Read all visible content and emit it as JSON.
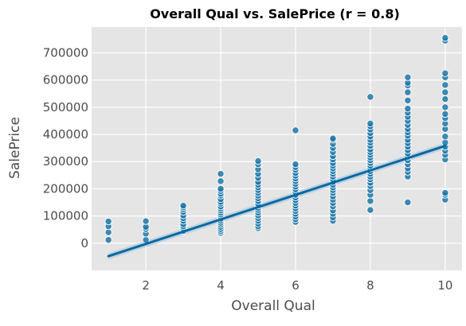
{
  "colors": {
    "background": "#ffffff",
    "plot_background": "#e5e5e5",
    "grid": "#ffffff",
    "point": "#1f77a8",
    "point_edge": "#ffffff",
    "regression_line": "#0868a3",
    "confidence_band": "#9ec3db"
  },
  "chart_data": {
    "type": "scatter",
    "title": "Overall Qual vs. SalePrice (r = 0.8)",
    "xlabel": "Overall Qual",
    "ylabel": "SalePrice",
    "xlim": [
      0.55,
      10.45
    ],
    "ylim": [
      -100000,
      795000
    ],
    "xticks": [
      2,
      4,
      6,
      8,
      10
    ],
    "yticks": [
      0,
      100000,
      200000,
      300000,
      400000,
      500000,
      600000,
      700000
    ],
    "grid": true,
    "legend": "none",
    "regression": {
      "x": [
        1,
        10
      ],
      "y": [
        -48000,
        358000
      ]
    },
    "series": [
      {
        "points": [
          [
            1,
            12000
          ],
          [
            1,
            40000
          ],
          [
            1,
            62000
          ],
          [
            1,
            80000
          ],
          [
            2,
            12000
          ],
          [
            2,
            35000
          ],
          [
            2,
            52000
          ],
          [
            2,
            60000
          ],
          [
            2,
            81000
          ],
          [
            3,
            45000
          ],
          [
            3,
            55000
          ],
          [
            3,
            62000
          ],
          [
            3,
            70000
          ],
          [
            3,
            82000
          ],
          [
            3,
            92000
          ],
          [
            3,
            102000
          ],
          [
            3,
            115000
          ],
          [
            3,
            125000
          ],
          [
            3,
            132000
          ],
          [
            3,
            138000
          ],
          [
            4,
            38000
          ],
          [
            4,
            45000
          ],
          [
            4,
            52000
          ],
          [
            4,
            60000
          ],
          [
            4,
            68000
          ],
          [
            4,
            75000
          ],
          [
            4,
            82000
          ],
          [
            4,
            90000
          ],
          [
            4,
            98000
          ],
          [
            4,
            105000
          ],
          [
            4,
            112000
          ],
          [
            4,
            120000
          ],
          [
            4,
            128000
          ],
          [
            4,
            135000
          ],
          [
            4,
            145000
          ],
          [
            4,
            152000
          ],
          [
            4,
            162000
          ],
          [
            4,
            175000
          ],
          [
            4,
            182000
          ],
          [
            4,
            192000
          ],
          [
            4,
            200000
          ],
          [
            4,
            228000
          ],
          [
            4,
            255000
          ],
          [
            5,
            55000
          ],
          [
            5,
            62000
          ],
          [
            5,
            72000
          ],
          [
            5,
            82000
          ],
          [
            5,
            92000
          ],
          [
            5,
            102000
          ],
          [
            5,
            112000
          ],
          [
            5,
            122000
          ],
          [
            5,
            130000
          ],
          [
            5,
            138000
          ],
          [
            5,
            145000
          ],
          [
            5,
            155000
          ],
          [
            5,
            165000
          ],
          [
            5,
            175000
          ],
          [
            5,
            185000
          ],
          [
            5,
            195000
          ],
          [
            5,
            205000
          ],
          [
            5,
            215000
          ],
          [
            5,
            225000
          ],
          [
            5,
            240000
          ],
          [
            5,
            255000
          ],
          [
            5,
            272000
          ],
          [
            5,
            290000
          ],
          [
            5,
            302000
          ],
          [
            6,
            78000
          ],
          [
            6,
            88000
          ],
          [
            6,
            98000
          ],
          [
            6,
            108000
          ],
          [
            6,
            118000
          ],
          [
            6,
            128000
          ],
          [
            6,
            138000
          ],
          [
            6,
            148000
          ],
          [
            6,
            158000
          ],
          [
            6,
            168000
          ],
          [
            6,
            178000
          ],
          [
            6,
            188000
          ],
          [
            6,
            198000
          ],
          [
            6,
            208000
          ],
          [
            6,
            218000
          ],
          [
            6,
            228000
          ],
          [
            6,
            238000
          ],
          [
            6,
            248000
          ],
          [
            6,
            258000
          ],
          [
            6,
            270000
          ],
          [
            6,
            280000
          ],
          [
            6,
            290000
          ],
          [
            6,
            415000
          ],
          [
            7,
            82000
          ],
          [
            7,
            95000
          ],
          [
            7,
            108000
          ],
          [
            7,
            120000
          ],
          [
            7,
            135000
          ],
          [
            7,
            148000
          ],
          [
            7,
            160000
          ],
          [
            7,
            172000
          ],
          [
            7,
            185000
          ],
          [
            7,
            195000
          ],
          [
            7,
            205000
          ],
          [
            7,
            215000
          ],
          [
            7,
            225000
          ],
          [
            7,
            235000
          ],
          [
            7,
            245000
          ],
          [
            7,
            255000
          ],
          [
            7,
            265000
          ],
          [
            7,
            275000
          ],
          [
            7,
            285000
          ],
          [
            7,
            295000
          ],
          [
            7,
            308000
          ],
          [
            7,
            320000
          ],
          [
            7,
            335000
          ],
          [
            7,
            350000
          ],
          [
            7,
            365000
          ],
          [
            7,
            380000
          ],
          [
            7,
            385000
          ],
          [
            8,
            122000
          ],
          [
            8,
            155000
          ],
          [
            8,
            178000
          ],
          [
            8,
            195000
          ],
          [
            8,
            210000
          ],
          [
            8,
            222000
          ],
          [
            8,
            235000
          ],
          [
            8,
            245000
          ],
          [
            8,
            255000
          ],
          [
            8,
            265000
          ],
          [
            8,
            275000
          ],
          [
            8,
            285000
          ],
          [
            8,
            295000
          ],
          [
            8,
            305000
          ],
          [
            8,
            315000
          ],
          [
            8,
            325000
          ],
          [
            8,
            335000
          ],
          [
            8,
            345000
          ],
          [
            8,
            358000
          ],
          [
            8,
            370000
          ],
          [
            8,
            380000
          ],
          [
            8,
            392000
          ],
          [
            8,
            405000
          ],
          [
            8,
            418000
          ],
          [
            8,
            430000
          ],
          [
            8,
            440000
          ],
          [
            8,
            538000
          ],
          [
            9,
            150000
          ],
          [
            9,
            245000
          ],
          [
            9,
            262000
          ],
          [
            9,
            275000
          ],
          [
            9,
            290000
          ],
          [
            9,
            305000
          ],
          [
            9,
            318000
          ],
          [
            9,
            330000
          ],
          [
            9,
            342000
          ],
          [
            9,
            355000
          ],
          [
            9,
            368000
          ],
          [
            9,
            380000
          ],
          [
            9,
            395000
          ],
          [
            9,
            408000
          ],
          [
            9,
            420000
          ],
          [
            9,
            435000
          ],
          [
            9,
            450000
          ],
          [
            9,
            465000
          ],
          [
            9,
            480000
          ],
          [
            9,
            495000
          ],
          [
            9,
            525000
          ],
          [
            9,
            555000
          ],
          [
            9,
            580000
          ],
          [
            9,
            590000
          ],
          [
            9,
            610000
          ],
          [
            10,
            160000
          ],
          [
            10,
            178000
          ],
          [
            10,
            185000
          ],
          [
            10,
            308000
          ],
          [
            10,
            325000
          ],
          [
            10,
            340000
          ],
          [
            10,
            355000
          ],
          [
            10,
            370000
          ],
          [
            10,
            392000
          ],
          [
            10,
            420000
          ],
          [
            10,
            440000
          ],
          [
            10,
            460000
          ],
          [
            10,
            475000
          ],
          [
            10,
            500000
          ],
          [
            10,
            530000
          ],
          [
            10,
            555000
          ],
          [
            10,
            582000
          ],
          [
            10,
            610000
          ],
          [
            10,
            625000
          ],
          [
            10,
            745000
          ],
          [
            10,
            755000
          ]
        ]
      }
    ]
  }
}
